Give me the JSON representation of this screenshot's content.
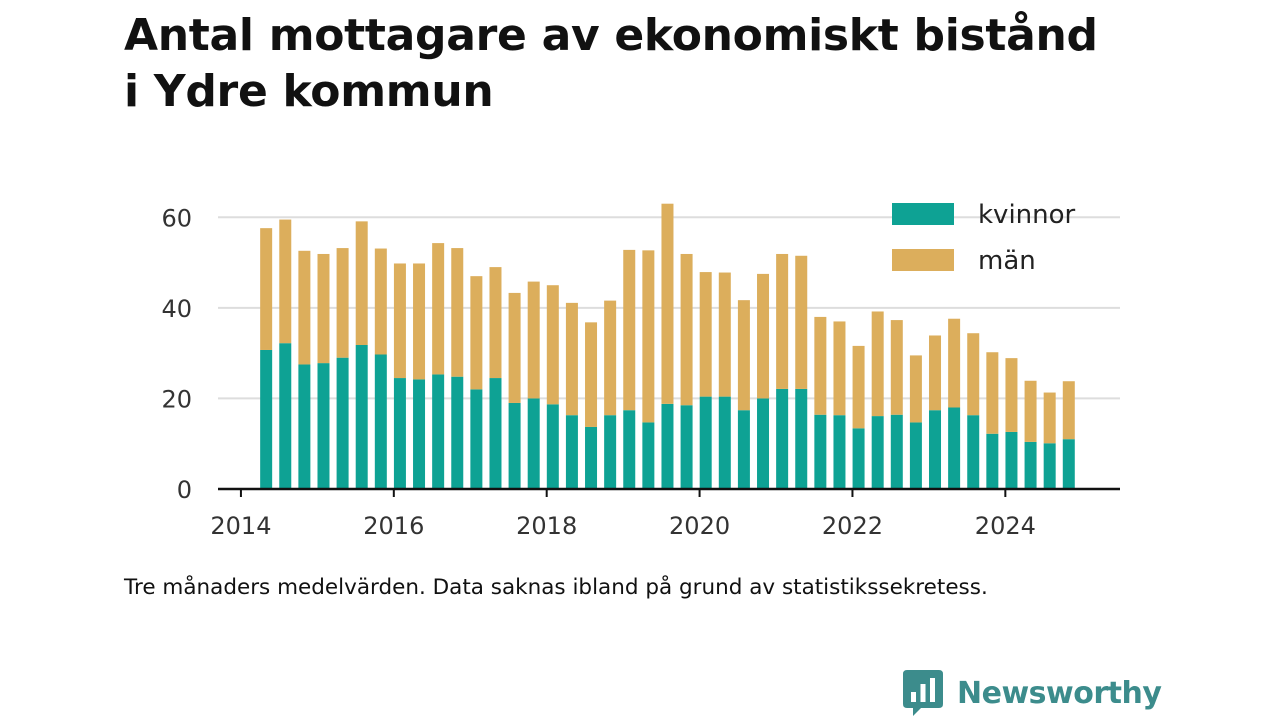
{
  "header": {
    "title_line1": "Antal mottagare av ekonomiskt bistånd",
    "title_line2": "i Ydre kommun"
  },
  "caption": "Tre månaders medelvärden. Data saknas ibland på grund av statistikssekretess.",
  "logo": {
    "text": "Newsworthy"
  },
  "colors": {
    "kvinnor": "#0ea294",
    "man": "#dcae5c",
    "grid": "#dddddd",
    "axis": "#111111"
  },
  "chart_data": {
    "type": "bar",
    "stacked": true,
    "title": "Antal mottagare av ekonomiskt bistånd i Ydre kommun",
    "xlabel": "",
    "ylabel": "",
    "ylim": [
      0,
      70
    ],
    "yticks": [
      0,
      20,
      40,
      60
    ],
    "xlim": [
      2013.7,
      2025.5
    ],
    "xticks": [
      2014,
      2016,
      2018,
      2020,
      2022,
      2024
    ],
    "grid": true,
    "legend_position": "top-right",
    "x": [
      2014.33,
      2014.58,
      2014.83,
      2015.08,
      2015.33,
      2015.58,
      2015.83,
      2016.08,
      2016.33,
      2016.58,
      2016.83,
      2017.08,
      2017.33,
      2017.58,
      2017.83,
      2018.08,
      2018.33,
      2018.58,
      2018.83,
      2019.08,
      2019.33,
      2019.58,
      2019.83,
      2020.08,
      2020.33,
      2020.58,
      2020.83,
      2021.08,
      2021.33,
      2021.58,
      2021.83,
      2022.08,
      2022.33,
      2022.58,
      2022.83,
      2023.08,
      2023.33,
      2023.58,
      2023.83,
      2024.08,
      2024.33,
      2024.58,
      2024.83
    ],
    "series": [
      {
        "name": "kvinnor",
        "color": "#0ea294",
        "values": [
          30.7,
          32.2,
          27.5,
          27.8,
          29.0,
          31.8,
          29.7,
          24.5,
          24.2,
          25.3,
          24.8,
          22.0,
          24.5,
          19.0,
          20.0,
          18.7,
          16.3,
          13.7,
          16.3,
          17.4,
          14.7,
          18.8,
          18.5,
          20.4,
          20.4,
          17.4,
          20.0,
          22.1,
          22.1,
          16.4,
          16.3,
          13.4,
          16.1,
          16.4,
          14.7,
          17.4,
          18.0,
          16.3,
          12.2,
          12.6,
          10.4,
          10.1,
          11.0
        ]
      },
      {
        "name": "män",
        "color": "#dcae5c",
        "values": [
          26.9,
          27.3,
          25.1,
          24.1,
          24.2,
          27.3,
          23.4,
          25.3,
          25.6,
          29.0,
          28.4,
          25.0,
          24.5,
          24.3,
          25.8,
          26.3,
          24.8,
          23.1,
          25.3,
          35.4,
          38.0,
          44.2,
          33.4,
          27.5,
          27.4,
          24.3,
          27.5,
          29.8,
          29.4,
          21.6,
          20.7,
          18.2,
          23.1,
          20.9,
          14.8,
          16.5,
          19.6,
          18.1,
          18.0,
          16.3,
          13.5,
          11.2,
          12.8
        ]
      }
    ]
  }
}
